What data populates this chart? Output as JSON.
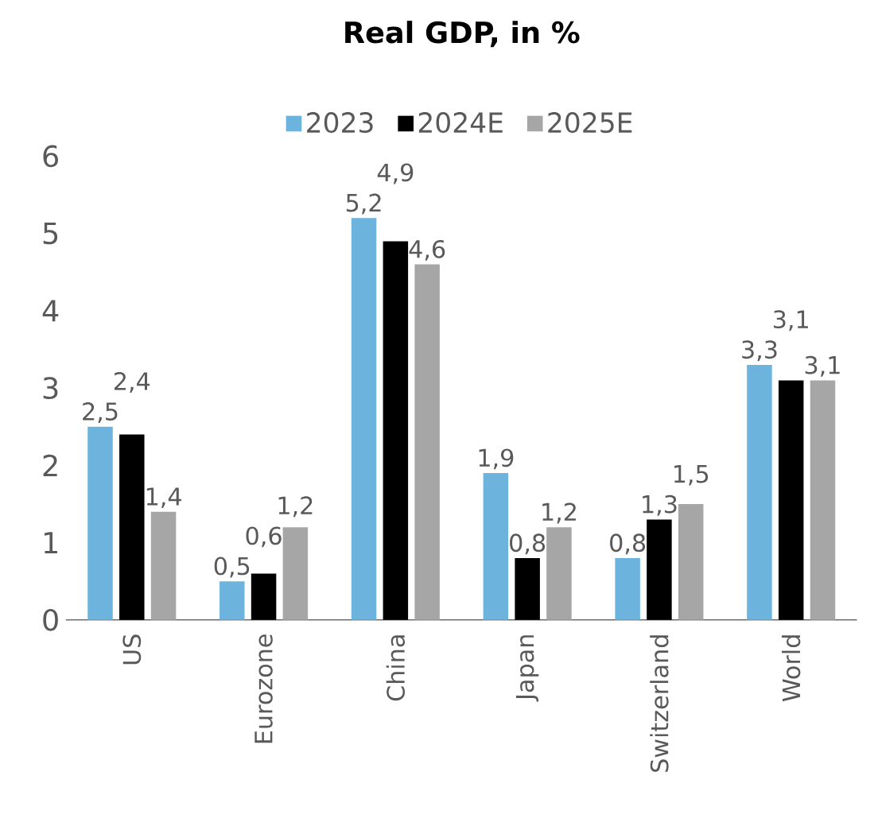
{
  "chart_data": {
    "type": "bar",
    "title": "Real GDP, in %",
    "categories": [
      "US",
      "Eurozone",
      "China",
      "Japan",
      "Switzerland",
      "World"
    ],
    "series": [
      {
        "name": "2023",
        "color": "#6cb4dd",
        "values": [
          2.5,
          0.5,
          5.2,
          1.9,
          0.8,
          3.3
        ],
        "value_labels": [
          "2,5",
          "0,5",
          "5,2",
          "1,9",
          "0,8",
          "3,3"
        ]
      },
      {
        "name": "2024E",
        "color": "#000000",
        "values": [
          2.4,
          0.6,
          4.9,
          0.8,
          1.3,
          3.1
        ],
        "value_labels": [
          "2,4",
          "0,6",
          "4,9",
          "0,8",
          "1,3",
          "3,1"
        ]
      },
      {
        "name": "2025E",
        "color": "#a6a6a6",
        "values": [
          1.4,
          1.2,
          4.6,
          1.2,
          1.5,
          3.1
        ],
        "value_labels": [
          "1,4",
          "1,2",
          "4,6",
          "1,2",
          "1,5",
          "3,1"
        ]
      }
    ],
    "ylim": [
      0,
      6
    ],
    "yticks": [
      0,
      1,
      2,
      3,
      4,
      5,
      6
    ],
    "legend": "top"
  }
}
